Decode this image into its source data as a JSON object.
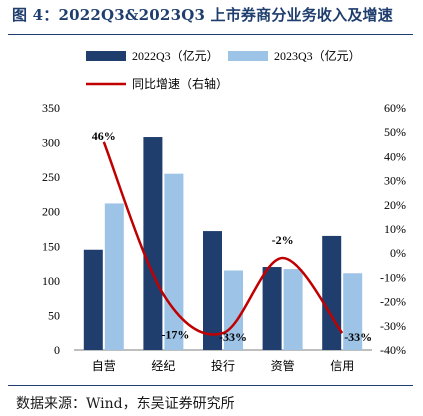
{
  "figure_title": "图 4：2022Q3&2023Q3 上市券商分业务收入及增速",
  "source_note": "数据来源：Wind，东吴证券研究所",
  "colors": {
    "bar_2022": "#1f3e6e",
    "bar_2023": "#9dc3e6",
    "line_yoy": "#c00000",
    "rule": "#1f3e6e"
  },
  "chart_data": {
    "type": "bar",
    "categories": [
      "自营",
      "经纪",
      "投行",
      "资管",
      "信用"
    ],
    "series": [
      {
        "name": "2022Q3（亿元）",
        "values": [
          145,
          308,
          172,
          120,
          165
        ]
      },
      {
        "name": "2023Q3（亿元）",
        "values": [
          212,
          255,
          115,
          117,
          111
        ]
      }
    ],
    "line_series": {
      "name": "同比增速（右轴）",
      "values": [
        46,
        -17,
        -33,
        -2,
        -33
      ]
    },
    "data_labels": [
      "46%",
      "-17%",
      "-33%",
      "-2%",
      "-33%"
    ],
    "y_left": {
      "ylim": [
        0,
        350
      ],
      "ticks": [
        "0",
        "50",
        "100",
        "150",
        "200",
        "250",
        "300",
        "350"
      ]
    },
    "y_right": {
      "ylim": [
        -40,
        60
      ],
      "ticks": [
        "-40%",
        "-30%",
        "-20%",
        "-10%",
        "0%",
        "10%",
        "20%",
        "30%",
        "40%",
        "50%",
        "60%"
      ]
    },
    "legend_placement": "top-left",
    "grid": false
  }
}
